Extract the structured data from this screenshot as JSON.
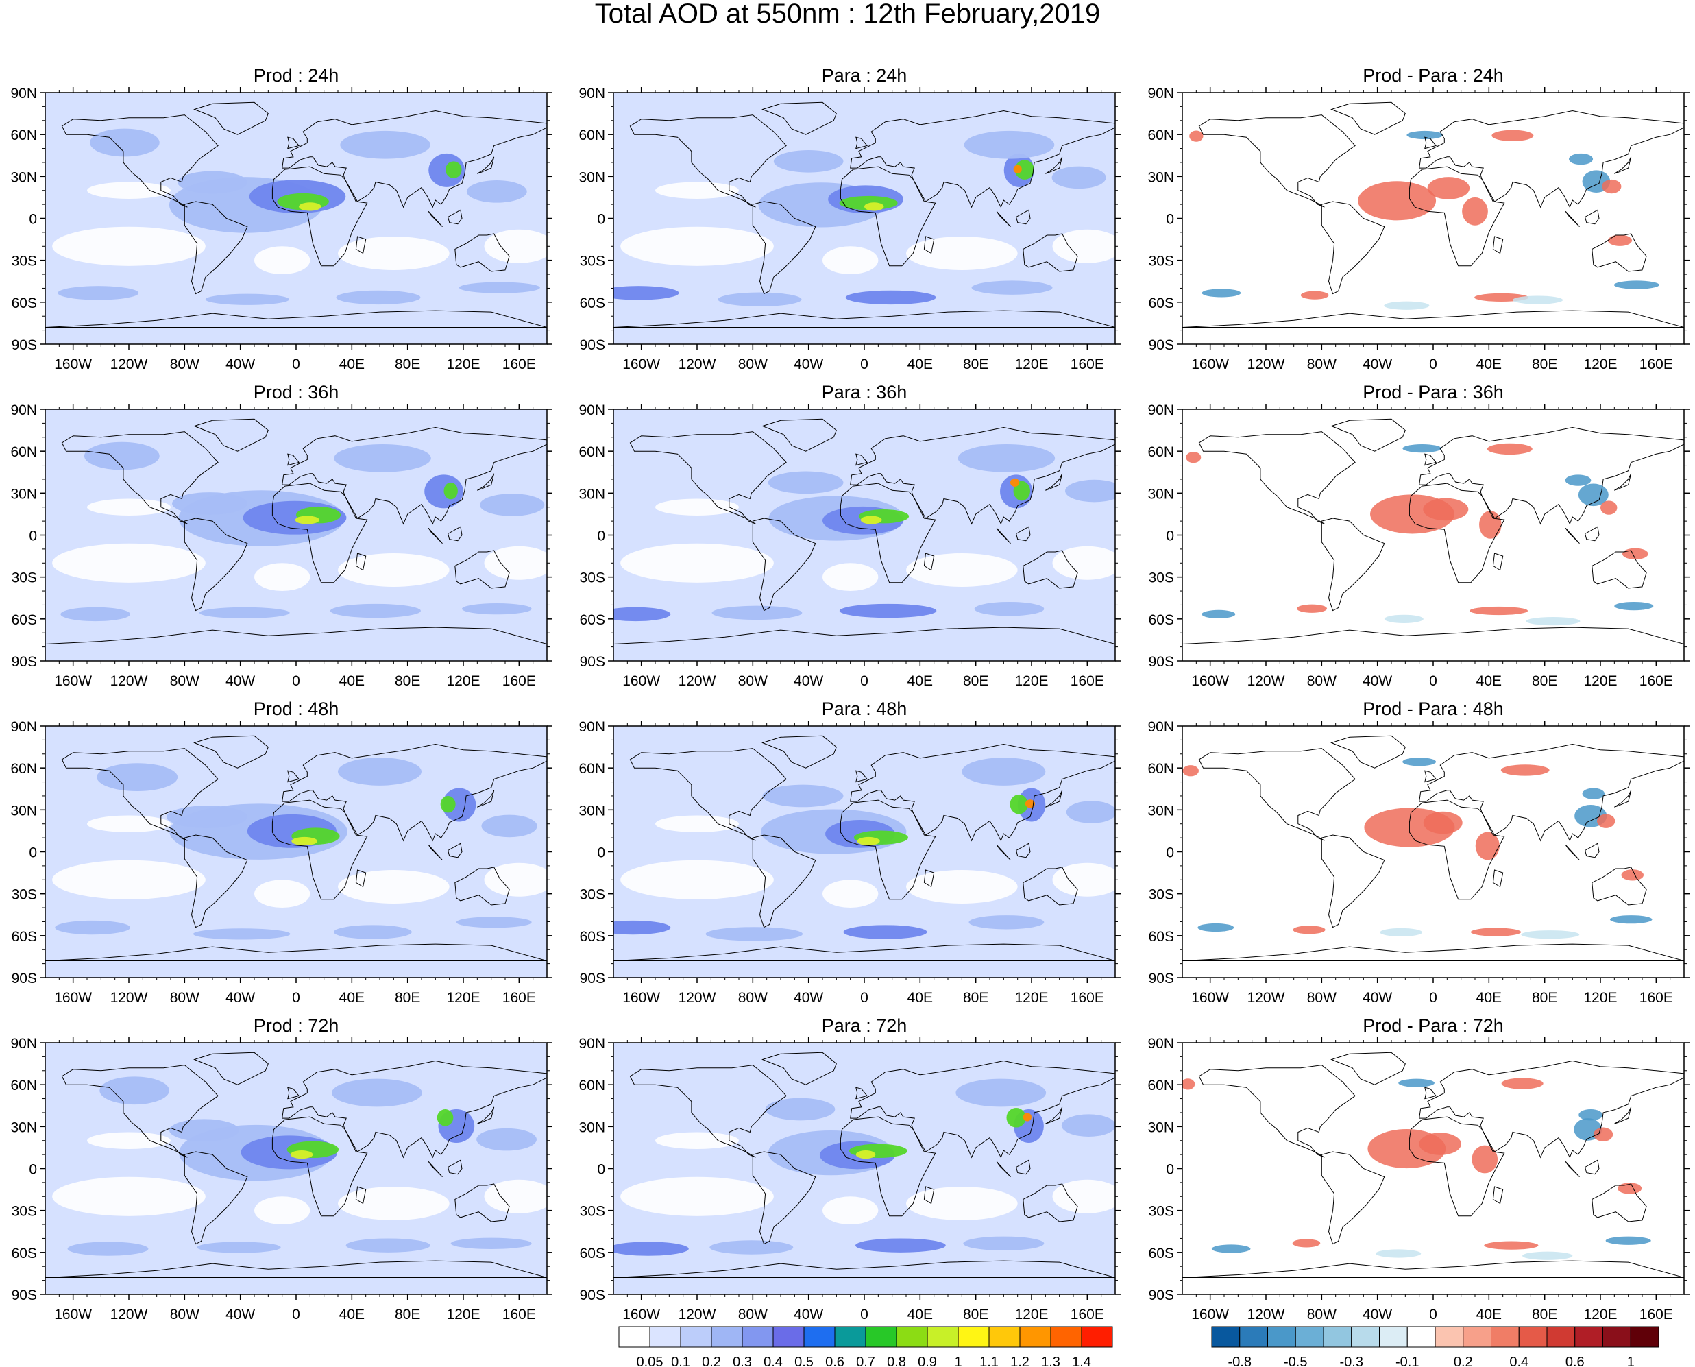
{
  "title": "Total AOD at 550nm : 12th February,2019",
  "chart_data": {
    "type": "heatmap",
    "title": "Total AOD at 550nm : 12th February,2019",
    "lon_ticks": [
      "160W",
      "120W",
      "80W",
      "40W",
      "0",
      "40E",
      "80E",
      "120E",
      "160E"
    ],
    "lon_tick_values": [
      -160,
      -120,
      -80,
      -40,
      0,
      40,
      80,
      120,
      160
    ],
    "lat_ticks": [
      "90N",
      "60N",
      "30N",
      "0",
      "30S",
      "60S",
      "90S"
    ],
    "lat_tick_values": [
      90,
      60,
      30,
      0,
      -30,
      -60,
      -90
    ],
    "xlim": [
      -180,
      180
    ],
    "ylim": [
      -90,
      90
    ],
    "panels": [
      {
        "title": "Prod : 24h",
        "kind": "prod"
      },
      {
        "title": "Para : 24h",
        "kind": "para"
      },
      {
        "title": "Prod - Para : 24h",
        "kind": "diff"
      },
      {
        "title": "Prod : 36h",
        "kind": "prod"
      },
      {
        "title": "Para : 36h",
        "kind": "para"
      },
      {
        "title": "Prod - Para : 36h",
        "kind": "diff"
      },
      {
        "title": "Prod : 48h",
        "kind": "prod"
      },
      {
        "title": "Para : 48h",
        "kind": "para"
      },
      {
        "title": "Prod - Para : 48h",
        "kind": "diff"
      },
      {
        "title": "Prod : 72h",
        "kind": "prod"
      },
      {
        "title": "Para : 72h",
        "kind": "para"
      },
      {
        "title": "Prod - Para : 72h",
        "kind": "diff"
      }
    ],
    "aod_colorbar": {
      "labels": [
        "0.05",
        "0.1",
        "0.2",
        "0.3",
        "0.4",
        "0.5",
        "0.6",
        "0.7",
        "0.8",
        "0.9",
        "1",
        "1.1",
        "1.2",
        "1.3",
        "1.4"
      ],
      "colors": [
        "#ffffff",
        "#dbe4ff",
        "#bccdfa",
        "#9fb6f5",
        "#8297f0",
        "#6a6ce8",
        "#1e6ef0",
        "#0a9a9a",
        "#28c828",
        "#8cdc14",
        "#c8f028",
        "#fff514",
        "#ffc80a",
        "#ff9600",
        "#ff6400",
        "#ff1e00"
      ]
    },
    "diff_colorbar": {
      "labels": [
        "-0.8",
        "-0.5",
        "-0.3",
        "-0.1",
        "0.2",
        "0.4",
        "0.6",
        "1"
      ],
      "colors": [
        "#08589e",
        "#2b7bb9",
        "#4a98c9",
        "#6bafd6",
        "#92c6e0",
        "#b8dbeb",
        "#dcedf5",
        "#ffffff",
        "#fbc4b0",
        "#f7a08a",
        "#f07d66",
        "#e55a48",
        "#d03a32",
        "#b01e26",
        "#8a0f1a",
        "#600008"
      ]
    },
    "colors": {
      "aod_background": "#d6e1ff",
      "aod_medium": "#a6bdf7",
      "aod_high": "#6f86ee",
      "dust_green": "#54d62a",
      "dust_yellow": "#d8f02a",
      "hotspot_orange": "#ff8a00",
      "diff_positive": "#ef6d5a",
      "diff_negative": "#4a98c9",
      "diff_light_negative": "#c7e4f0"
    }
  }
}
